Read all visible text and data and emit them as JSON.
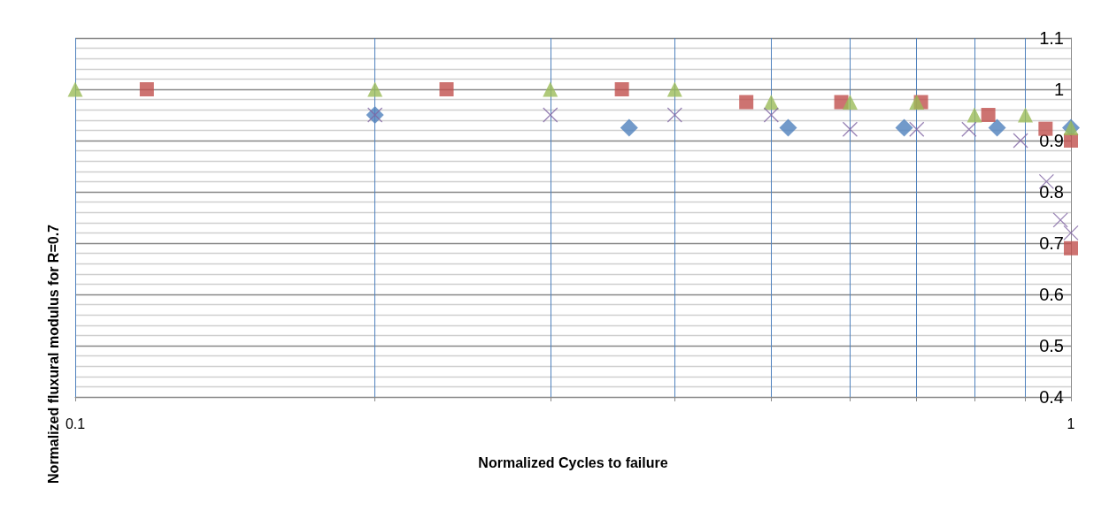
{
  "chart_data": {
    "type": "scatter",
    "xlabel": "Normalized Cycles to failure",
    "ylabel": "Normalized fluxural modulus for R=0.7",
    "log": "x",
    "xlim": [
      0.1,
      1
    ],
    "xticks": [
      0.1,
      {
        "value": 0.2,
        "label": null
      },
      {
        "value": 0.3,
        "label": null
      },
      {
        "value": 0.4,
        "label": null
      },
      {
        "value": 0.5,
        "label": null
      },
      {
        "value": 0.6,
        "label": null
      },
      {
        "value": 0.7,
        "label": null
      },
      {
        "value": 0.8,
        "label": null
      },
      {
        "value": 0.9,
        "label": null
      },
      1
    ],
    "ylim": [
      0.4,
      1.1
    ],
    "yticks": [
      0.4,
      0.5,
      0.6,
      0.7,
      0.8,
      0.9,
      1,
      1.1
    ],
    "grid": true,
    "series": [
      {
        "color": "#4f81bd",
        "marker": "diamond",
        "x": [
          0.2,
          0.36,
          0.52,
          0.68,
          0.843,
          1
        ],
        "values": [
          0.95,
          0.925,
          0.925,
          0.925,
          0.925,
          0.925
        ]
      },
      {
        "color": "#c0504d",
        "marker": "square",
        "x": [
          0.118,
          0.236,
          0.354,
          0.472,
          0.588,
          0.707,
          0.826,
          0.943,
          1,
          1
        ],
        "values": [
          1,
          1,
          1,
          0.975,
          0.975,
          0.975,
          0.95,
          0.923,
          0.9,
          0.69
        ]
      },
      {
        "color": "#9bbb59",
        "marker": "triangle",
        "x": [
          0.1,
          0.2,
          0.3,
          0.4,
          0.5,
          0.6,
          0.7,
          0.8,
          0.9,
          1
        ],
        "values": [
          1,
          1,
          1,
          1,
          0.975,
          0.975,
          0.975,
          0.95,
          0.95,
          0.925
        ]
      },
      {
        "color": "#8064a2",
        "marker": "cross",
        "x": [
          0.2,
          0.3,
          0.4,
          0.5,
          0.6,
          0.7,
          0.79,
          0.89,
          0.945,
          0.976,
          1
        ],
        "values": [
          0.95,
          0.95,
          0.95,
          0.95,
          0.922,
          0.922,
          0.922,
          0.9,
          0.82,
          0.745,
          0.72
        ]
      }
    ]
  }
}
